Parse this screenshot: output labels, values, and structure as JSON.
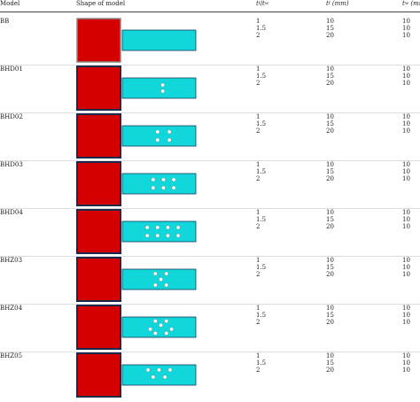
{
  "header": {
    "model": "Model",
    "shape": "Shape of model",
    "ratio_num": "t",
    "ratio_sub_num": "f",
    "ratio_den": "t",
    "ratio_sub_den": "w",
    "tf_symbol": "t",
    "tf_sub": "f",
    "tf_unit": "(mm)",
    "tw_symbol": "t",
    "tw_sub": "w",
    "tw_unit": "(mm)"
  },
  "colors": {
    "column": "#d40000",
    "column_border": "#1a2a4a",
    "beam": "#11d6da",
    "beam_border": "#1a3a5a",
    "hole": "#ffffff"
  },
  "rows": [
    {
      "model": "BB",
      "ratios": [
        "1",
        "1.5",
        "2"
      ],
      "tf": [
        "10",
        "15",
        "20"
      ],
      "tw": [
        "10",
        "10",
        "10"
      ],
      "holes": []
    },
    {
      "model": "BHD01",
      "ratios": [
        "1",
        "1.5",
        "2"
      ],
      "tf": [
        "10",
        "15",
        "20"
      ],
      "tw": [
        "10",
        "10",
        "10"
      ],
      "holes": [
        [
          0.55,
          0.35
        ],
        [
          0.55,
          0.65
        ]
      ]
    },
    {
      "model": "BHD02",
      "ratios": [
        "1",
        "1.5",
        "2"
      ],
      "tf": [
        "10",
        "15",
        "20"
      ],
      "tw": [
        "10",
        "10",
        "10"
      ],
      "holes": [
        [
          0.48,
          0.3
        ],
        [
          0.64,
          0.3
        ],
        [
          0.48,
          0.7
        ],
        [
          0.64,
          0.7
        ]
      ]
    },
    {
      "model": "BHD03",
      "ratios": [
        "1",
        "1.5",
        "2"
      ],
      "tf": [
        "10",
        "15",
        "20"
      ],
      "tw": [
        "10",
        "10",
        "10"
      ],
      "holes": [
        [
          0.42,
          0.3
        ],
        [
          0.56,
          0.3
        ],
        [
          0.7,
          0.3
        ],
        [
          0.42,
          0.7
        ],
        [
          0.56,
          0.7
        ],
        [
          0.7,
          0.7
        ]
      ]
    },
    {
      "model": "BHD04",
      "ratios": [
        "1",
        "1.5",
        "2"
      ],
      "tf": [
        "10",
        "15",
        "20"
      ],
      "tw": [
        "10",
        "10",
        "10"
      ],
      "holes": [
        [
          0.34,
          0.3
        ],
        [
          0.48,
          0.3
        ],
        [
          0.62,
          0.3
        ],
        [
          0.76,
          0.3
        ],
        [
          0.34,
          0.7
        ],
        [
          0.48,
          0.7
        ],
        [
          0.62,
          0.7
        ],
        [
          0.76,
          0.7
        ]
      ]
    },
    {
      "model": "BHZ03",
      "ratios": [
        "1",
        "1.5",
        "2"
      ],
      "tf": [
        "10",
        "15",
        "20"
      ],
      "tw": [
        "10",
        "10",
        "10"
      ],
      "holes": [
        [
          0.45,
          0.22
        ],
        [
          0.6,
          0.22
        ],
        [
          0.525,
          0.5
        ],
        [
          0.45,
          0.78
        ],
        [
          0.6,
          0.78
        ]
      ]
    },
    {
      "model": "BHZ04",
      "ratios": [
        "1",
        "1.5",
        "2"
      ],
      "tf": [
        "10",
        "15",
        "20"
      ],
      "tw": [
        "10",
        "10",
        "10"
      ],
      "holes": [
        [
          0.45,
          0.2
        ],
        [
          0.6,
          0.2
        ],
        [
          0.525,
          0.4
        ],
        [
          0.38,
          0.6
        ],
        [
          0.67,
          0.6
        ],
        [
          0.45,
          0.8
        ],
        [
          0.6,
          0.8
        ]
      ]
    },
    {
      "model": "BHZ05",
      "ratios": [
        "1",
        "1.5",
        "2"
      ],
      "tf": [
        "10",
        "15",
        "20"
      ],
      "tw": [
        "10",
        "10",
        "10"
      ],
      "holes": [
        [
          0.35,
          0.25
        ],
        [
          0.5,
          0.25
        ],
        [
          0.65,
          0.25
        ],
        [
          0.42,
          0.6
        ],
        [
          0.58,
          0.6
        ]
      ]
    }
  ]
}
